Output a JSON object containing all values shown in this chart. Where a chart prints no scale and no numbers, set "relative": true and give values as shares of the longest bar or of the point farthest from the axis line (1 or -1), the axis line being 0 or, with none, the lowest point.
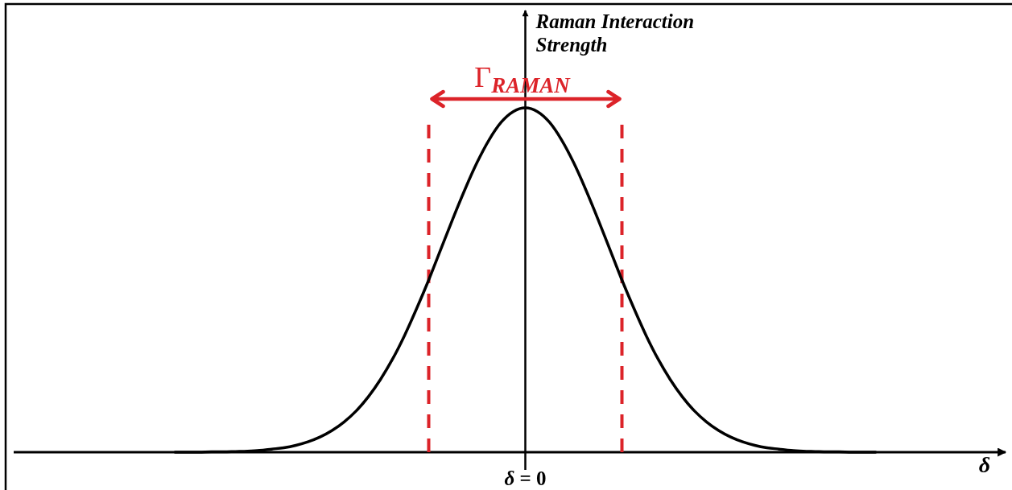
{
  "chart_data": {
    "type": "line",
    "relative": true,
    "ylabel": "Raman Interaction Strength",
    "xlabel": "δ",
    "categories": [
      null,
      null,
      null,
      null,
      null,
      null,
      null,
      null,
      null,
      null,
      null,
      null,
      null,
      null,
      null,
      null,
      null,
      null,
      null,
      null,
      null,
      null,
      null,
      null,
      null,
      null,
      null,
      null,
      null,
      null,
      null,
      null,
      null,
      null,
      null,
      null,
      null,
      null,
      null,
      null,
      null,
      null,
      null,
      null,
      null,
      null,
      null,
      null,
      null,
      null,
      null,
      null,
      null,
      null,
      null,
      null,
      null,
      null,
      null
    ],
    "series": [
      {
        "color": "#000000",
        "values": [
          0,
          0,
          0,
          0.001,
          0.001,
          0.002,
          0.003,
          0.005,
          0.009,
          0.013,
          0.02,
          0.03,
          0.044,
          0.063,
          0.088,
          0.12,
          0.161,
          0.211,
          0.27,
          0.339,
          0.417,
          0.5,
          0.589,
          0.678,
          0.763,
          0.841,
          0.907,
          0.958,
          0.989,
          1,
          0.989,
          0.958,
          0.907,
          0.841,
          0.763,
          0.678,
          0.589,
          0.5,
          0.417,
          0.339,
          0.27,
          0.211,
          0.161,
          0.12,
          0.088,
          0.063,
          0.044,
          0.03,
          0.02,
          0.013,
          0.009,
          0.005,
          0.003,
          0.002,
          0.001,
          0.001,
          0,
          0,
          0
        ]
      }
    ],
    "annotations": [
      "Γ$_{RAMAN}$",
      "δ = 0"
    ]
  }
}
